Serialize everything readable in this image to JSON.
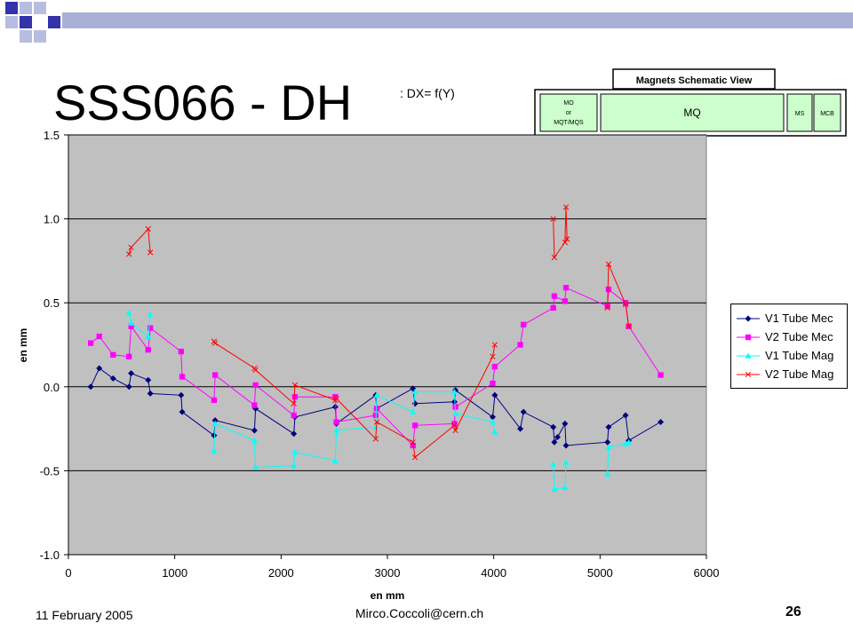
{
  "slide": {
    "title": "SSS066 - DH",
    "subtitle": ": DX= f(Y)",
    "footer_date": "11 February 2005",
    "footer_email": "Mirco.Coccoli@cern.ch",
    "page_number": "26"
  },
  "schematic": {
    "header": "Magnets Schematic View",
    "cells": [
      "MO\nor\nMQT/MQS",
      "MQ",
      "MS",
      "MCB"
    ],
    "fill_color": "#ccffcc"
  },
  "chart_data": {
    "type": "line",
    "title": "",
    "xlabel": "en mm",
    "ylabel": "en mm",
    "xlim": [
      0,
      6000
    ],
    "ylim": [
      -1.0,
      1.5
    ],
    "xticks": [
      "0",
      "1000",
      "2000",
      "3000",
      "4000",
      "5000",
      "6000"
    ],
    "yticks": [
      "-1.0",
      "-0.5",
      "0.0",
      "0.5",
      "1.0",
      "1.5"
    ],
    "grid": "horizontal",
    "legend": "right",
    "plot_background": "#c0c0c0",
    "series": [
      {
        "name": "V1 Tube Mec",
        "color": "#000080",
        "marker": "diamond",
        "segments": [
          [
            [
              210,
              0.0
            ],
            [
              290,
              0.11
            ],
            [
              420,
              0.05
            ],
            [
              570,
              0.0
            ],
            [
              590,
              0.08
            ],
            [
              750,
              0.04
            ],
            [
              770,
              -0.04
            ],
            [
              1060,
              -0.05
            ],
            [
              1070,
              -0.15
            ],
            [
              1370,
              -0.29
            ],
            [
              1380,
              -0.2
            ],
            [
              1750,
              -0.26
            ],
            [
              1760,
              -0.13
            ],
            [
              2120,
              -0.28
            ],
            [
              2130,
              -0.18
            ],
            [
              2510,
              -0.12
            ],
            [
              2520,
              -0.22
            ],
            [
              2890,
              -0.05
            ],
            [
              2900,
              -0.13
            ],
            [
              3240,
              -0.01
            ],
            [
              3260,
              -0.1
            ],
            [
              3630,
              -0.09
            ],
            [
              3640,
              -0.02
            ],
            [
              3990,
              -0.18
            ],
            [
              4010,
              -0.05
            ],
            [
              4250,
              -0.25
            ],
            [
              4280,
              -0.15
            ],
            [
              4560,
              -0.24
            ],
            [
              4570,
              -0.33
            ],
            [
              4600,
              -0.3
            ],
            [
              4670,
              -0.22
            ],
            [
              4680,
              -0.35
            ],
            [
              5070,
              -0.33
            ],
            [
              5080,
              -0.24
            ],
            [
              5240,
              -0.17
            ],
            [
              5270,
              -0.32
            ],
            [
              5570,
              -0.21
            ]
          ]
        ]
      },
      {
        "name": "V2 Tube Mec",
        "color": "#ff00ff",
        "marker": "square",
        "segments": [
          [
            [
              210,
              0.26
            ],
            [
              290,
              0.3
            ],
            [
              420,
              0.19
            ],
            [
              570,
              0.18
            ],
            [
              590,
              0.36
            ],
            [
              750,
              0.22
            ],
            [
              770,
              0.35
            ],
            [
              1060,
              0.21
            ],
            [
              1070,
              0.06
            ],
            [
              1370,
              -0.08
            ],
            [
              1380,
              0.07
            ],
            [
              1750,
              -0.11
            ],
            [
              1760,
              0.01
            ],
            [
              2120,
              -0.17
            ],
            [
              2130,
              -0.06
            ],
            [
              2510,
              -0.06
            ],
            [
              2520,
              -0.21
            ],
            [
              2890,
              -0.17
            ],
            [
              2900,
              -0.13
            ],
            [
              3240,
              -0.35
            ],
            [
              3260,
              -0.23
            ],
            [
              3630,
              -0.22
            ],
            [
              3640,
              -0.12
            ],
            [
              3990,
              0.02
            ],
            [
              4010,
              0.12
            ],
            [
              4250,
              0.25
            ],
            [
              4280,
              0.37
            ],
            [
              4560,
              0.47
            ],
            [
              4570,
              0.54
            ],
            [
              4670,
              0.51
            ],
            [
              4680,
              0.59
            ],
            [
              5070,
              0.48
            ],
            [
              5080,
              0.58
            ],
            [
              5240,
              0.5
            ],
            [
              5270,
              0.36
            ],
            [
              5570,
              0.07
            ]
          ]
        ]
      },
      {
        "name": "V1 Tube Mag",
        "color": "#00ffff",
        "marker": "triangle",
        "segments": [
          [
            [
              570,
              0.44
            ],
            [
              590,
              0.38
            ],
            [
              750,
              0.3
            ],
            [
              770,
              0.43
            ]
          ],
          [
            [
              1370,
              -0.38
            ],
            [
              1380,
              -0.22
            ],
            [
              1750,
              -0.32
            ],
            [
              1760,
              -0.48
            ],
            [
              2120,
              -0.47
            ],
            [
              2130,
              -0.39
            ],
            [
              2510,
              -0.44
            ],
            [
              2520,
              -0.26
            ],
            [
              2890,
              -0.24
            ],
            [
              2900,
              -0.05
            ],
            [
              3240,
              -0.15
            ],
            [
              3260,
              -0.03
            ],
            [
              3630,
              -0.03
            ],
            [
              3640,
              -0.16
            ],
            [
              3990,
              -0.21
            ],
            [
              4010,
              -0.27
            ]
          ],
          [
            [
              4560,
              -0.46
            ],
            [
              4570,
              -0.61
            ],
            [
              4670,
              -0.6
            ],
            [
              4680,
              -0.45
            ]
          ],
          [
            [
              5070,
              -0.52
            ],
            [
              5080,
              -0.36
            ],
            [
              5240,
              -0.34
            ],
            [
              5270,
              -0.33
            ]
          ]
        ]
      },
      {
        "name": "V2 Tube Mag",
        "color": "#ff0000",
        "marker": "x",
        "segments": [
          [
            [
              570,
              0.79
            ],
            [
              590,
              0.83
            ],
            [
              750,
              0.94
            ],
            [
              770,
              0.8
            ]
          ],
          [
            [
              1370,
              0.27
            ],
            [
              1380,
              0.26
            ],
            [
              1750,
              0.11
            ],
            [
              1760,
              0.1
            ],
            [
              2120,
              -0.1
            ],
            [
              2130,
              0.01
            ],
            [
              2510,
              -0.08
            ],
            [
              2520,
              -0.07
            ],
            [
              2890,
              -0.31
            ],
            [
              2900,
              -0.21
            ],
            [
              3240,
              -0.33
            ],
            [
              3260,
              -0.42
            ],
            [
              3630,
              -0.23
            ],
            [
              3640,
              -0.26
            ],
            [
              3990,
              0.18
            ],
            [
              4010,
              0.25
            ]
          ],
          [
            [
              4560,
              1.0
            ],
            [
              4570,
              0.77
            ],
            [
              4670,
              0.86
            ],
            [
              4680,
              1.07
            ],
            [
              4690,
              0.88
            ]
          ],
          [
            [
              5070,
              0.47
            ],
            [
              5080,
              0.73
            ],
            [
              5240,
              0.49
            ],
            [
              5270,
              0.36
            ]
          ]
        ]
      }
    ]
  }
}
